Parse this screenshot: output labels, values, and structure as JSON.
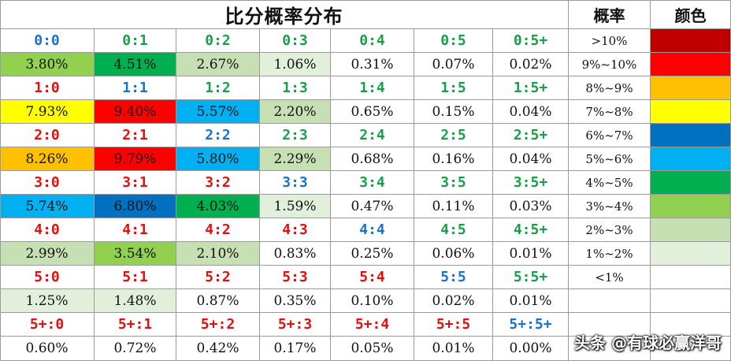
{
  "title": "比分概率分布",
  "header": {
    "prob_label": "概率",
    "color_label": "颜色"
  },
  "colors": {
    "score_blue": "#1a73c8",
    "score_green": "#1a9e4a",
    "score_red": "#e01010",
    "range_colors": {
      "gt10": "#c00000",
      "9to10": "#ff0000",
      "8to9": "#ffc000",
      "7to8": "#ffff00",
      "6to7": "#0070c0",
      "5to6": "#00b0f0",
      "4to5": "#00b050",
      "3to4": "#92d050",
      "2to3": "#c6e0b4",
      "1to2": "#e2efda",
      "lt1": "#ffffff"
    }
  },
  "score_rows": [
    {
      "scores": [
        {
          "label": "0:0",
          "color": "blue"
        },
        {
          "label": "0:1",
          "color": "green"
        },
        {
          "label": "0:2",
          "color": "green"
        },
        {
          "label": "0:3",
          "color": "green"
        },
        {
          "label": "0:4",
          "color": "green"
        },
        {
          "label": "0:5",
          "color": "green"
        },
        {
          "label": "0:5+",
          "color": "green"
        }
      ],
      "probs": [
        {
          "value": "3.80%",
          "band": "3to4"
        },
        {
          "value": "4.51%",
          "band": "4to5"
        },
        {
          "value": "2.67%",
          "band": "2to3"
        },
        {
          "value": "1.06%",
          "band": "1to2"
        },
        {
          "value": "0.31%",
          "band": "lt1"
        },
        {
          "value": "0.07%",
          "band": "lt1"
        },
        {
          "value": "0.02%",
          "band": "lt1"
        }
      ]
    },
    {
      "scores": [
        {
          "label": "1:0",
          "color": "red"
        },
        {
          "label": "1:1",
          "color": "blue"
        },
        {
          "label": "1:2",
          "color": "green"
        },
        {
          "label": "1:3",
          "color": "green"
        },
        {
          "label": "1:4",
          "color": "green"
        },
        {
          "label": "1:5",
          "color": "green"
        },
        {
          "label": "1:5+",
          "color": "green"
        }
      ],
      "probs": [
        {
          "value": "7.93%",
          "band": "7to8"
        },
        {
          "value": "9.40%",
          "band": "9to10"
        },
        {
          "value": "5.57%",
          "band": "5to6"
        },
        {
          "value": "2.20%",
          "band": "2to3"
        },
        {
          "value": "0.65%",
          "band": "lt1"
        },
        {
          "value": "0.15%",
          "band": "lt1"
        },
        {
          "value": "0.04%",
          "band": "lt1"
        }
      ]
    },
    {
      "scores": [
        {
          "label": "2:0",
          "color": "red"
        },
        {
          "label": "2:1",
          "color": "red"
        },
        {
          "label": "2:2",
          "color": "blue"
        },
        {
          "label": "2:3",
          "color": "green"
        },
        {
          "label": "2:4",
          "color": "green"
        },
        {
          "label": "2:5",
          "color": "green"
        },
        {
          "label": "2:5+",
          "color": "green"
        }
      ],
      "probs": [
        {
          "value": "8.26%",
          "band": "8to9"
        },
        {
          "value": "9.79%",
          "band": "9to10"
        },
        {
          "value": "5.80%",
          "band": "5to6"
        },
        {
          "value": "2.29%",
          "band": "2to3"
        },
        {
          "value": "0.68%",
          "band": "lt1"
        },
        {
          "value": "0.16%",
          "band": "lt1"
        },
        {
          "value": "0.04%",
          "band": "lt1"
        }
      ]
    },
    {
      "scores": [
        {
          "label": "3:0",
          "color": "red"
        },
        {
          "label": "3:1",
          "color": "red"
        },
        {
          "label": "3:2",
          "color": "red"
        },
        {
          "label": "3:3",
          "color": "blue"
        },
        {
          "label": "3:4",
          "color": "green"
        },
        {
          "label": "3:5",
          "color": "green"
        },
        {
          "label": "3:5+",
          "color": "green"
        }
      ],
      "probs": [
        {
          "value": "5.74%",
          "band": "5to6"
        },
        {
          "value": "6.80%",
          "band": "6to7"
        },
        {
          "value": "4.03%",
          "band": "4to5"
        },
        {
          "value": "1.59%",
          "band": "1to2"
        },
        {
          "value": "0.47%",
          "band": "lt1"
        },
        {
          "value": "0.11%",
          "band": "lt1"
        },
        {
          "value": "0.03%",
          "band": "lt1"
        }
      ]
    },
    {
      "scores": [
        {
          "label": "4:0",
          "color": "red"
        },
        {
          "label": "4:1",
          "color": "red"
        },
        {
          "label": "4:2",
          "color": "red"
        },
        {
          "label": "4:3",
          "color": "red"
        },
        {
          "label": "4:4",
          "color": "blue"
        },
        {
          "label": "4:5",
          "color": "green"
        },
        {
          "label": "4:5+",
          "color": "green"
        }
      ],
      "probs": [
        {
          "value": "2.99%",
          "band": "2to3"
        },
        {
          "value": "3.54%",
          "band": "3to4"
        },
        {
          "value": "2.10%",
          "band": "2to3"
        },
        {
          "value": "0.83%",
          "band": "lt1"
        },
        {
          "value": "0.25%",
          "band": "lt1"
        },
        {
          "value": "0.06%",
          "band": "lt1"
        },
        {
          "value": "0.01%",
          "band": "lt1"
        }
      ]
    },
    {
      "scores": [
        {
          "label": "5:0",
          "color": "red"
        },
        {
          "label": "5:1",
          "color": "red"
        },
        {
          "label": "5:2",
          "color": "red"
        },
        {
          "label": "5:3",
          "color": "red"
        },
        {
          "label": "5:4",
          "color": "red"
        },
        {
          "label": "5:5",
          "color": "blue"
        },
        {
          "label": "5:5+",
          "color": "green"
        }
      ],
      "probs": [
        {
          "value": "1.25%",
          "band": "1to2"
        },
        {
          "value": "1.48%",
          "band": "1to2"
        },
        {
          "value": "0.87%",
          "band": "lt1"
        },
        {
          "value": "0.35%",
          "band": "lt1"
        },
        {
          "value": "0.10%",
          "band": "lt1"
        },
        {
          "value": "0.02%",
          "band": "lt1"
        },
        {
          "value": "0.01%",
          "band": "lt1"
        }
      ]
    },
    {
      "scores": [
        {
          "label": "5+:0",
          "color": "red"
        },
        {
          "label": "5+:1",
          "color": "red"
        },
        {
          "label": "5+:2",
          "color": "red"
        },
        {
          "label": "5+:3",
          "color": "red"
        },
        {
          "label": "5+:4",
          "color": "red"
        },
        {
          "label": "5+:5",
          "color": "red"
        },
        {
          "label": "5+:5+",
          "color": "blue"
        }
      ],
      "probs": [
        {
          "value": "0.60%",
          "band": "lt1"
        },
        {
          "value": "0.72%",
          "band": "lt1"
        },
        {
          "value": "0.42%",
          "band": "lt1"
        },
        {
          "value": "0.17%",
          "band": "lt1"
        },
        {
          "value": "0.05%",
          "band": "lt1"
        },
        {
          "value": "0.01%",
          "band": "lt1"
        },
        {
          "value": "0.00%",
          "band": "lt1"
        }
      ]
    }
  ],
  "legend": [
    {
      "range": "&gt;10%",
      "band": "gt10"
    },
    {
      "range": "9%~10%",
      "band": "9to10"
    },
    {
      "range": "8%~9%",
      "band": "8to9"
    },
    {
      "range": "7%~8%",
      "band": "7to8"
    },
    {
      "range": "6%~7%",
      "band": "6to7"
    },
    {
      "range": "5%~6%",
      "band": "5to6"
    },
    {
      "range": "4%~5%",
      "band": "4to5"
    },
    {
      "range": "3%~4%",
      "band": "3to4"
    },
    {
      "range": "2%~3%",
      "band": "2to3"
    },
    {
      "range": "1%~2%",
      "band": "1to2"
    },
    {
      "range": "<1%",
      "band": "lt1"
    }
  ],
  "watermark": "头条 @有球必赢洋哥"
}
